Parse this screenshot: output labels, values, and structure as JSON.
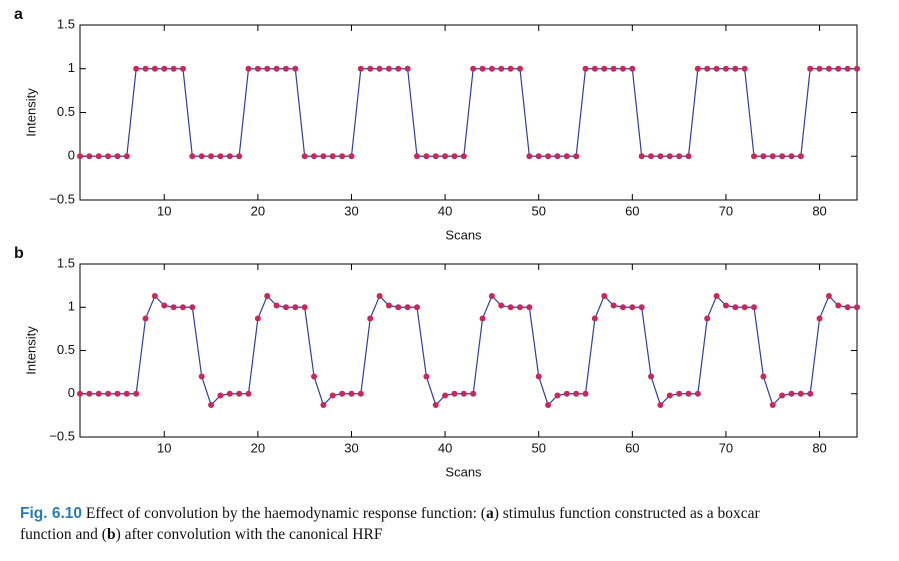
{
  "charts": [
    {
      "chart_data": {
        "type": "line",
        "panel": "a",
        "xlabel": "Scans",
        "ylabel": "Intensity",
        "x": [
          1,
          2,
          3,
          4,
          5,
          6,
          7,
          8,
          9,
          10,
          11,
          12,
          13,
          14,
          15,
          16,
          17,
          18,
          19,
          20,
          21,
          22,
          23,
          24,
          25,
          26,
          27,
          28,
          29,
          30,
          31,
          32,
          33,
          34,
          35,
          36,
          37,
          38,
          39,
          40,
          41,
          42,
          43,
          44,
          45,
          46,
          47,
          48,
          49,
          50,
          51,
          52,
          53,
          54,
          55,
          56,
          57,
          58,
          59,
          60,
          61,
          62,
          63,
          64,
          65,
          66,
          67,
          68,
          69,
          70,
          71,
          72,
          73,
          74,
          75,
          76,
          77,
          78,
          79,
          80,
          81,
          82,
          83,
          84
        ],
        "values": [
          0,
          0,
          0,
          0,
          0,
          0,
          1,
          1,
          1,
          1,
          1,
          1,
          0,
          0,
          0,
          0,
          0,
          0,
          1,
          1,
          1,
          1,
          1,
          1,
          0,
          0,
          0,
          0,
          0,
          0,
          1,
          1,
          1,
          1,
          1,
          1,
          0,
          0,
          0,
          0,
          0,
          0,
          1,
          1,
          1,
          1,
          1,
          1,
          0,
          0,
          0,
          0,
          0,
          0,
          1,
          1,
          1,
          1,
          1,
          1,
          0,
          0,
          0,
          0,
          0,
          0,
          1,
          1,
          1,
          1,
          1,
          1,
          0,
          0,
          0,
          0,
          0,
          0,
          1,
          1,
          1,
          1,
          1,
          1
        ],
        "color": "#2f3f9c",
        "marker_color": "#c8285a",
        "xlim": [
          1,
          84
        ],
        "xticks": [
          10,
          20,
          30,
          40,
          50,
          60,
          70,
          80
        ],
        "ylim": [
          -0.5,
          1.5
        ],
        "yticks": [
          {
            "value": -0.5,
            "label": "−0.5"
          },
          0,
          0.5,
          1,
          1.5
        ]
      }
    },
    {
      "chart_data": {
        "type": "line",
        "panel": "b",
        "xlabel": "Scans",
        "ylabel": "Intensity",
        "x": [
          1,
          2,
          3,
          4,
          5,
          6,
          7,
          8,
          9,
          10,
          11,
          12,
          13,
          14,
          15,
          16,
          17,
          18,
          19,
          20,
          21,
          22,
          23,
          24,
          25,
          26,
          27,
          28,
          29,
          30,
          31,
          32,
          33,
          34,
          35,
          36,
          37,
          38,
          39,
          40,
          41,
          42,
          43,
          44,
          45,
          46,
          47,
          48,
          49,
          50,
          51,
          52,
          53,
          54,
          55,
          56,
          57,
          58,
          59,
          60,
          61,
          62,
          63,
          64,
          65,
          66,
          67,
          68,
          69,
          70,
          71,
          72,
          73,
          74,
          75,
          76,
          77,
          78,
          79,
          80,
          81,
          82,
          83,
          84
        ],
        "values": [
          0,
          0,
          0,
          0,
          0,
          0,
          0,
          0.87,
          1.13,
          1.02,
          1,
          1,
          1,
          0.2,
          -0.13,
          -0.02,
          0,
          0,
          0,
          0.87,
          1.13,
          1.02,
          1,
          1,
          1,
          0.2,
          -0.13,
          -0.02,
          0,
          0,
          0,
          0.87,
          1.13,
          1.02,
          1,
          1,
          1,
          0.2,
          -0.13,
          -0.02,
          0,
          0,
          0,
          0.87,
          1.13,
          1.02,
          1,
          1,
          1,
          0.2,
          -0.13,
          -0.02,
          0,
          0,
          0,
          0.87,
          1.13,
          1.02,
          1,
          1,
          1,
          0.2,
          -0.13,
          -0.02,
          0,
          0,
          0,
          0.87,
          1.13,
          1.02,
          1,
          1,
          1,
          0.2,
          -0.13,
          -0.02,
          0,
          0,
          0,
          0.87,
          1.13,
          1.02,
          1,
          1
        ],
        "color": "#2f3f9c",
        "marker_color": "#c8285a",
        "xlim": [
          1,
          84
        ],
        "xticks": [
          10,
          20,
          30,
          40,
          50,
          60,
          70,
          80
        ],
        "ylim": [
          -0.5,
          1.5
        ],
        "yticks": [
          {
            "value": -0.5,
            "label": "−0.5"
          },
          0,
          0.5,
          1,
          1.5
        ]
      }
    }
  ],
  "caption": {
    "label": "Fig. 6.10",
    "parts": [
      " Effect of convolution by the haemodynamic response function: (",
      "a",
      ") stimulus function constructed as a boxcar",
      "function and (",
      "b",
      ") after convolution with the canonical HRF"
    ]
  }
}
